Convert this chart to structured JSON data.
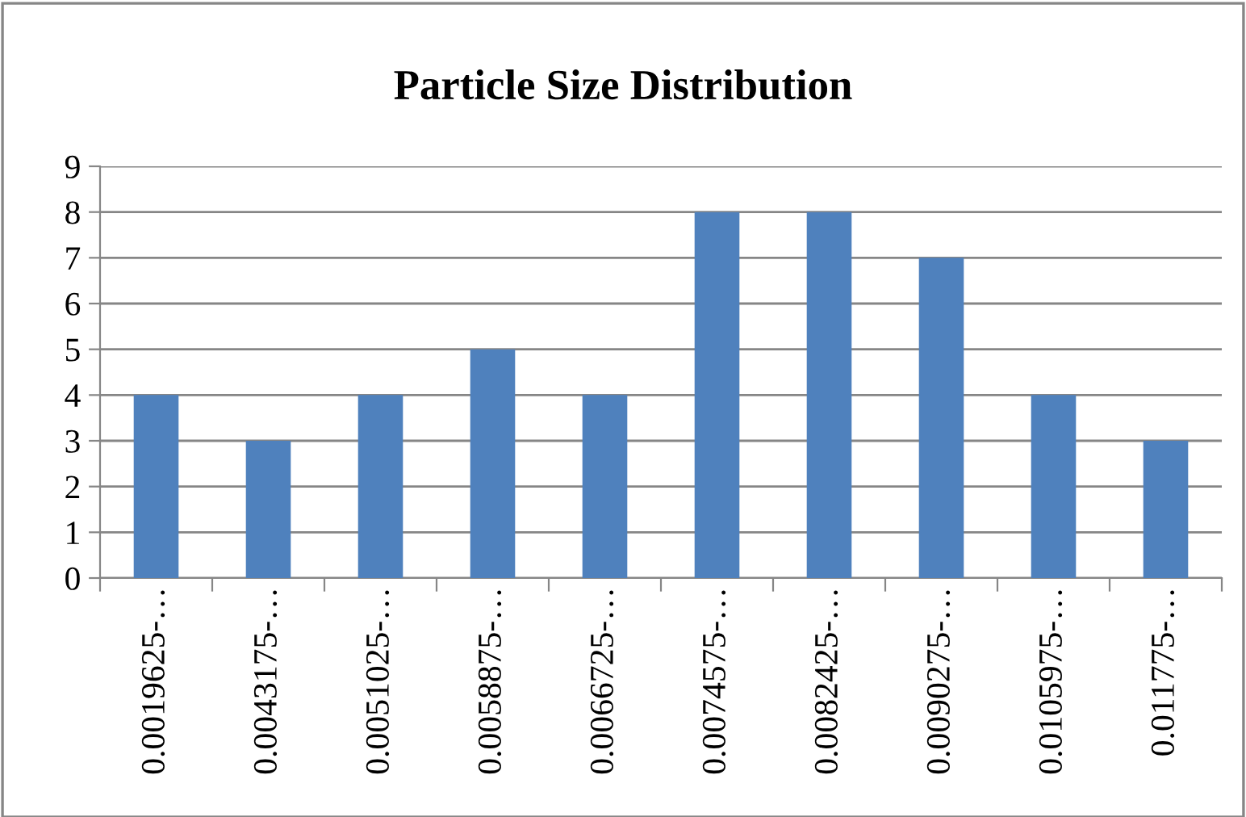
{
  "chart_data": {
    "type": "bar",
    "title": "Particle Size Distribution",
    "categories": [
      "0.0019625-…",
      "0.0043175-…",
      "0.0051025-…",
      "0.0058875-…",
      "0.0066725-…",
      "0.0074575-…",
      "0.0082425-…",
      "0.0090275-…",
      "0.0105975-…",
      "0.011775-…"
    ],
    "values": [
      4,
      3,
      4,
      5,
      4,
      8,
      8,
      7,
      4,
      3
    ],
    "color": "#4f81bd",
    "ylim": [
      0,
      9
    ],
    "yticks": [
      0,
      1,
      2,
      3,
      4,
      5,
      6,
      7,
      8,
      9
    ],
    "grid": "y"
  }
}
